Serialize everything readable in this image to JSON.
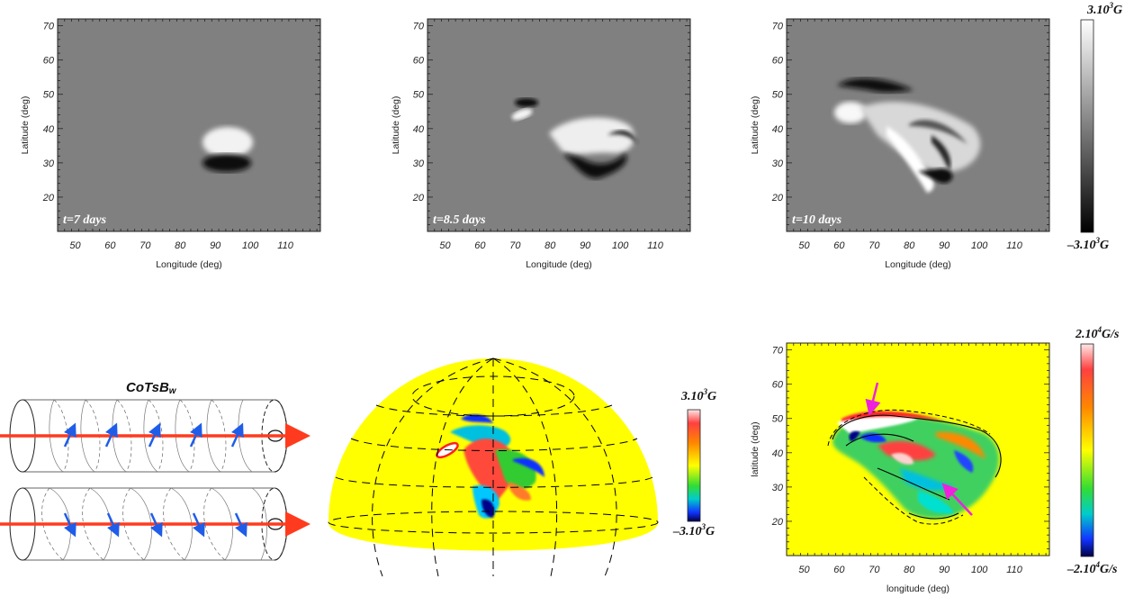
{
  "panels": [
    {
      "id": "p1",
      "time_label": "t=7 days",
      "xlabel": "Longitude (deg)",
      "ylabel": "Latitude (deg)",
      "xticks": [
        "50",
        "60",
        "70",
        "80",
        "90",
        "100",
        "110"
      ],
      "yticks": [
        "20",
        "30",
        "40",
        "50",
        "60",
        "70"
      ]
    },
    {
      "id": "p2",
      "time_label": "t=8.5 days",
      "xlabel": "Longitude (deg)",
      "ylabel": "Latitude (deg)",
      "xticks": [
        "50",
        "60",
        "70",
        "80",
        "90",
        "100",
        "110"
      ],
      "yticks": [
        "20",
        "30",
        "40",
        "50",
        "60",
        "70"
      ]
    },
    {
      "id": "p3",
      "time_label": "t=10 days",
      "xlabel": "Longitude (deg)",
      "ylabel": "Latitude (deg)",
      "xticks": [
        "50",
        "60",
        "70",
        "80",
        "90",
        "100",
        "110"
      ],
      "yticks": [
        "20",
        "30",
        "40",
        "50",
        "60",
        "70"
      ]
    },
    {
      "id": "p4",
      "time_label": "",
      "xlabel": "longitude (deg)",
      "ylabel": "latitude (deg)",
      "xticks": [
        "50",
        "60",
        "70",
        "80",
        "90",
        "100",
        "110"
      ],
      "yticks": [
        "20",
        "30",
        "40",
        "50",
        "60",
        "70"
      ]
    }
  ],
  "colorbars": {
    "gray": {
      "top": "3.10",
      "top_exp": "3",
      "top_unit": "G",
      "bottom": "–3.10",
      "bottom_exp": "3",
      "bottom_unit": "G"
    },
    "sphere": {
      "top": "3.10",
      "top_exp": "3",
      "top_unit": "G",
      "bottom": "–3.10",
      "bottom_exp": "3",
      "bottom_unit": "G"
    },
    "rate": {
      "top": "2.10",
      "top_exp": "4",
      "top_unit": "G/s",
      "bottom": "–2.10",
      "bottom_exp": "4",
      "bottom_unit": "G/s"
    }
  },
  "diagram": {
    "title_main": "CoTsB",
    "title_sub": "w"
  },
  "colors": {
    "panel_gray": "#808080",
    "yellow": "#ffff00",
    "arrow_red": "#ff3b1f",
    "arrow_blue": "#1f5de8",
    "arrow_magenta": "#ee22dd"
  }
}
